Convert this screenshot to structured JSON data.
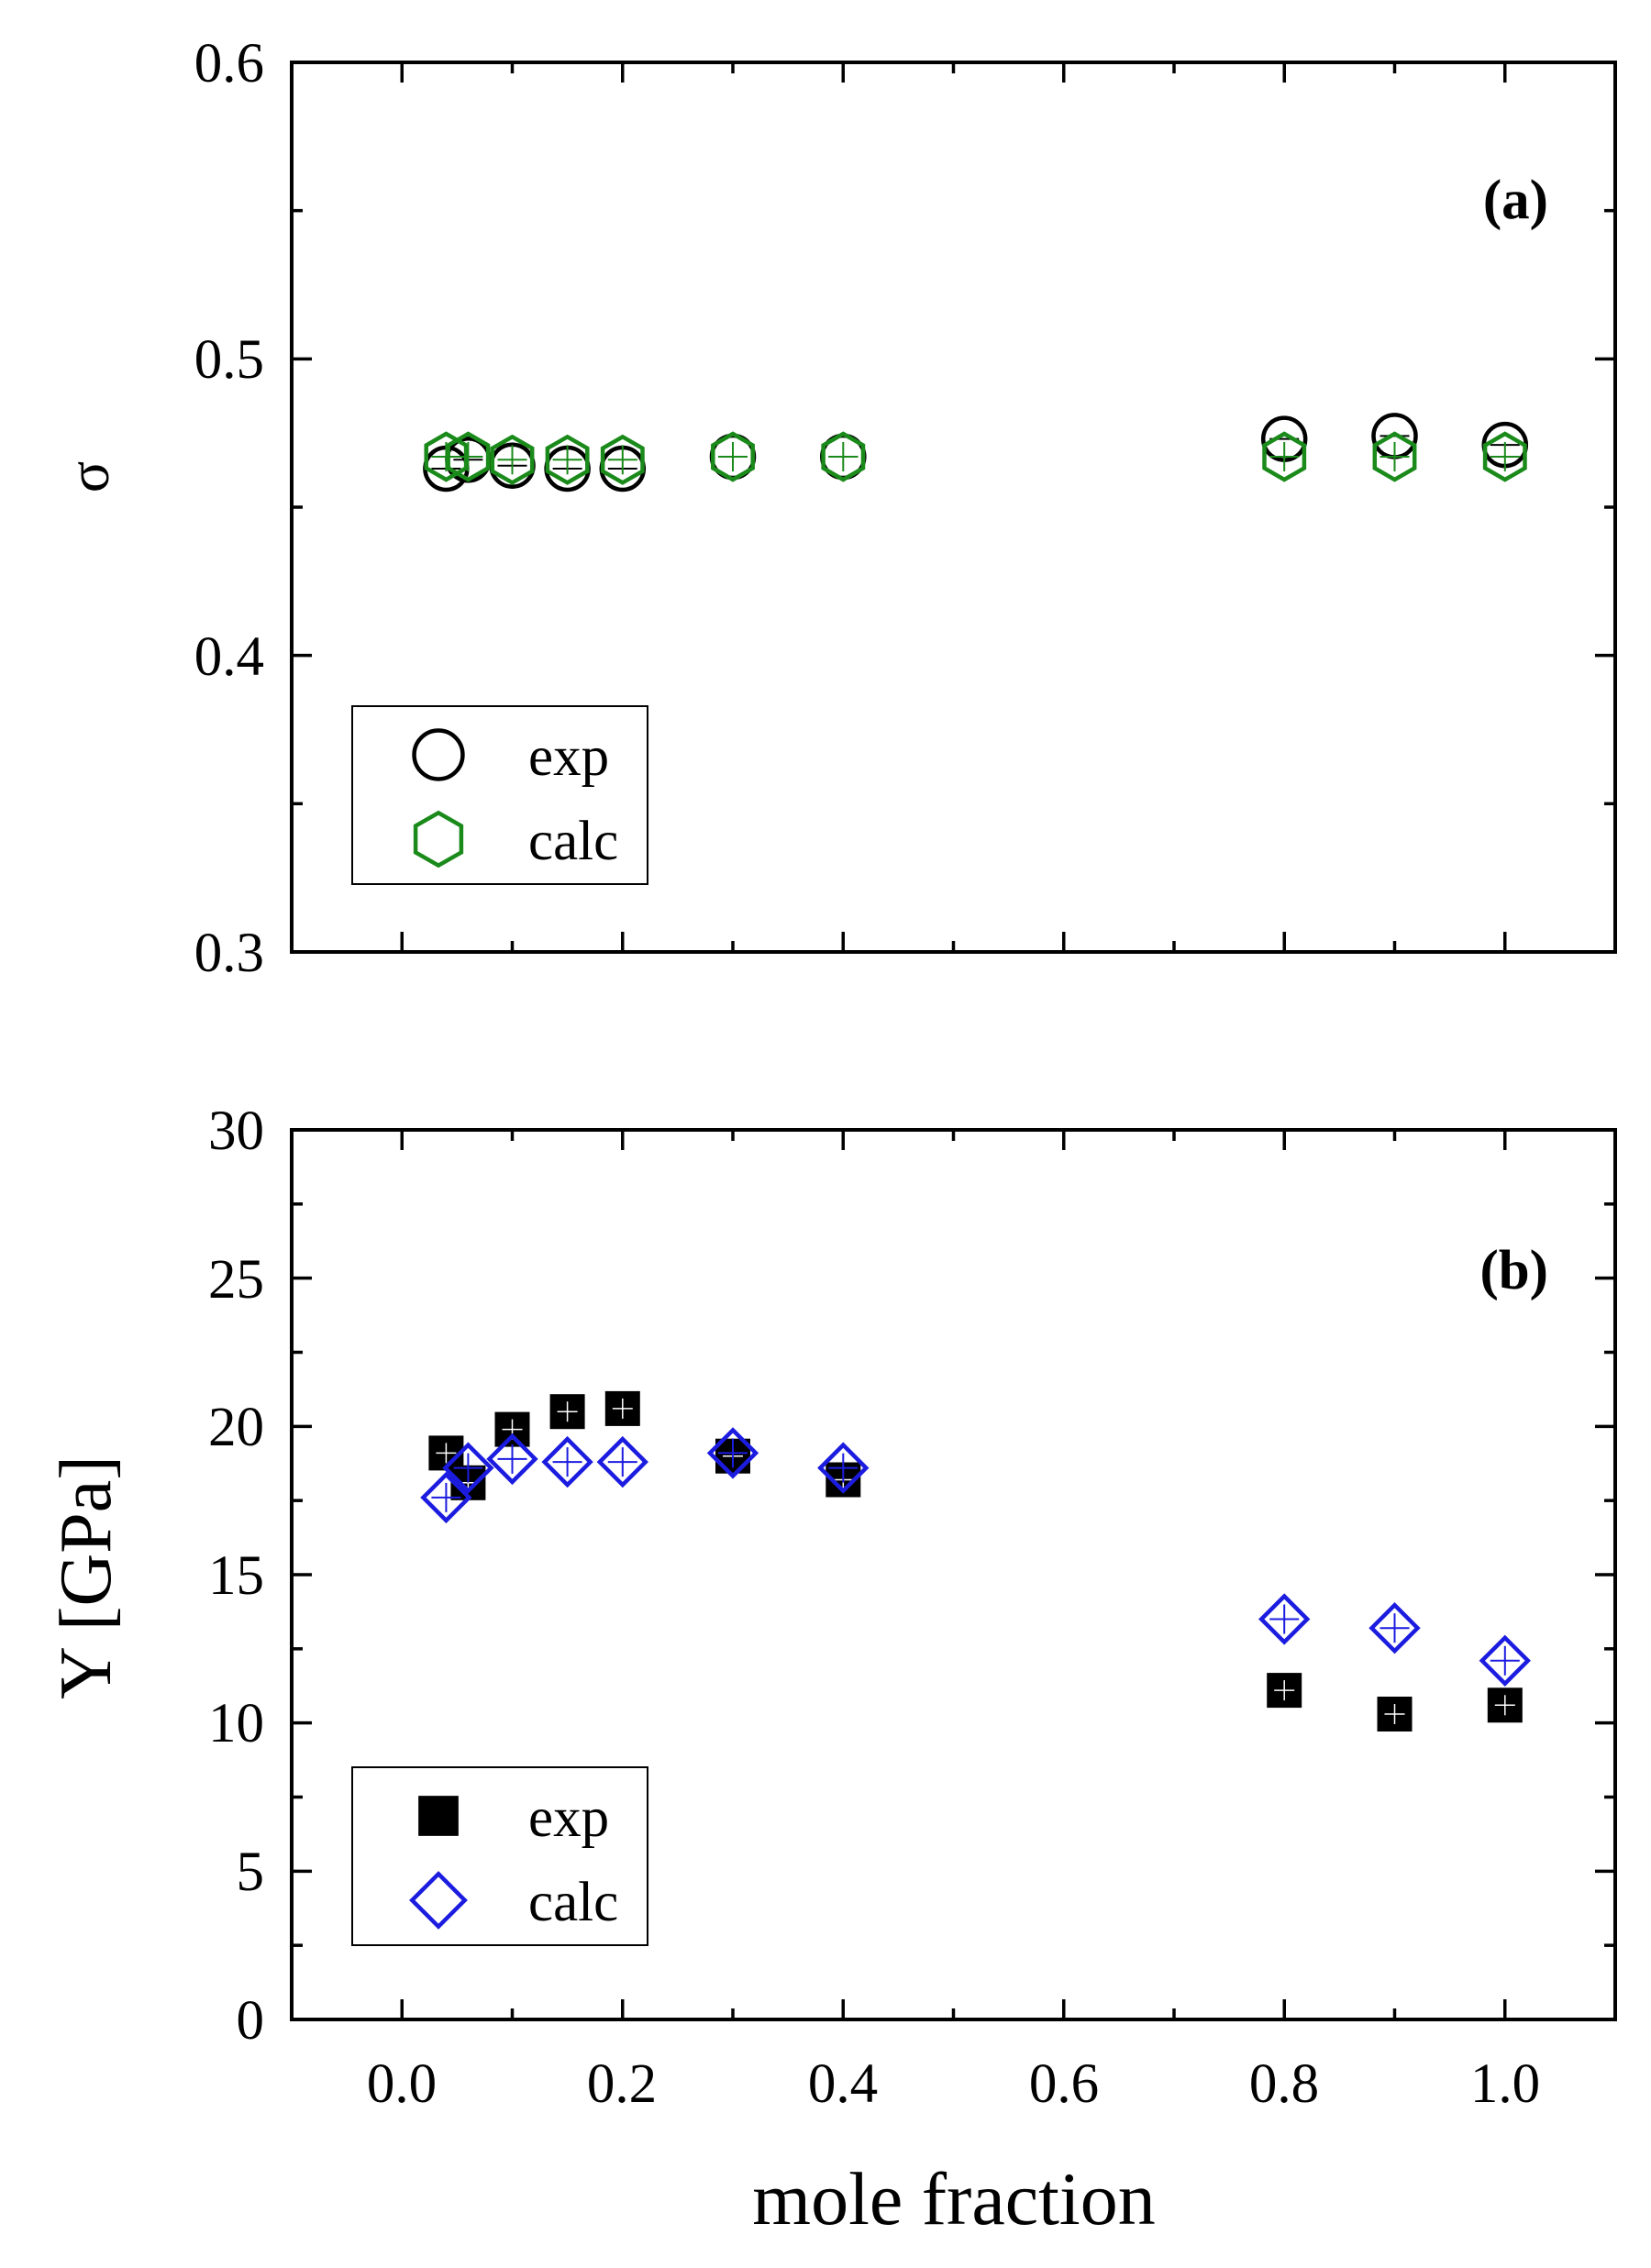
{
  "chart_data": [
    {
      "type": "scatter",
      "panel_label": "(a)",
      "xlabel": "",
      "ylabel": "σ",
      "xlim": [
        -0.1,
        1.1
      ],
      "ylim": [
        0.3,
        0.6
      ],
      "xticks": [
        0.0,
        0.2,
        0.4,
        0.6,
        0.8,
        1.0
      ],
      "yticks": [
        0.3,
        0.4,
        0.5,
        0.6
      ],
      "ytick_labels": [
        "0.3",
        "0.4",
        "0.5",
        "0.6"
      ],
      "legend_position": "bottom-left",
      "series": [
        {
          "name": "exp",
          "marker": "circle-open",
          "color": "#000000",
          "x": [
            0.04,
            0.06,
            0.1,
            0.15,
            0.2,
            0.3,
            0.4,
            0.8,
            0.9,
            1.0
          ],
          "y": [
            0.463,
            0.466,
            0.464,
            0.463,
            0.463,
            0.467,
            0.467,
            0.473,
            0.474,
            0.471
          ]
        },
        {
          "name": "calc",
          "marker": "hexagon-open",
          "color": "#1a8a1a",
          "x": [
            0.04,
            0.06,
            0.1,
            0.15,
            0.2,
            0.3,
            0.4,
            0.8,
            0.9,
            1.0
          ],
          "y": [
            0.467,
            0.467,
            0.466,
            0.466,
            0.466,
            0.467,
            0.467,
            0.467,
            0.467,
            0.467
          ]
        }
      ]
    },
    {
      "type": "scatter",
      "panel_label": "(b)",
      "xlabel": "mole fraction",
      "ylabel": "Y [GPa]",
      "xlim": [
        -0.1,
        1.1
      ],
      "ylim": [
        0,
        30
      ],
      "xticks": [
        0.0,
        0.2,
        0.4,
        0.6,
        0.8,
        1.0
      ],
      "xtick_labels": [
        "0.0",
        "0.2",
        "0.4",
        "0.6",
        "0.8",
        "1.0"
      ],
      "yticks": [
        0,
        5,
        10,
        15,
        20,
        25,
        30
      ],
      "ytick_labels": [
        "0",
        "5",
        "10",
        "15",
        "20",
        "25",
        "30"
      ],
      "legend_position": "bottom-left",
      "series": [
        {
          "name": "exp",
          "marker": "square-filled",
          "color": "#000000",
          "x": [
            0.04,
            0.06,
            0.1,
            0.15,
            0.2,
            0.3,
            0.4,
            0.8,
            0.9,
            1.0
          ],
          "y": [
            19.1,
            18.1,
            19.9,
            20.5,
            20.6,
            19.0,
            18.2,
            11.1,
            10.3,
            10.6
          ]
        },
        {
          "name": "calc",
          "marker": "diamond-open",
          "color": "#1c1ce0",
          "x": [
            0.04,
            0.06,
            0.1,
            0.15,
            0.2,
            0.3,
            0.4,
            0.8,
            0.9,
            1.0
          ],
          "y": [
            17.6,
            18.6,
            18.9,
            18.8,
            18.8,
            19.1,
            18.6,
            13.5,
            13.2,
            12.1
          ]
        }
      ]
    }
  ]
}
